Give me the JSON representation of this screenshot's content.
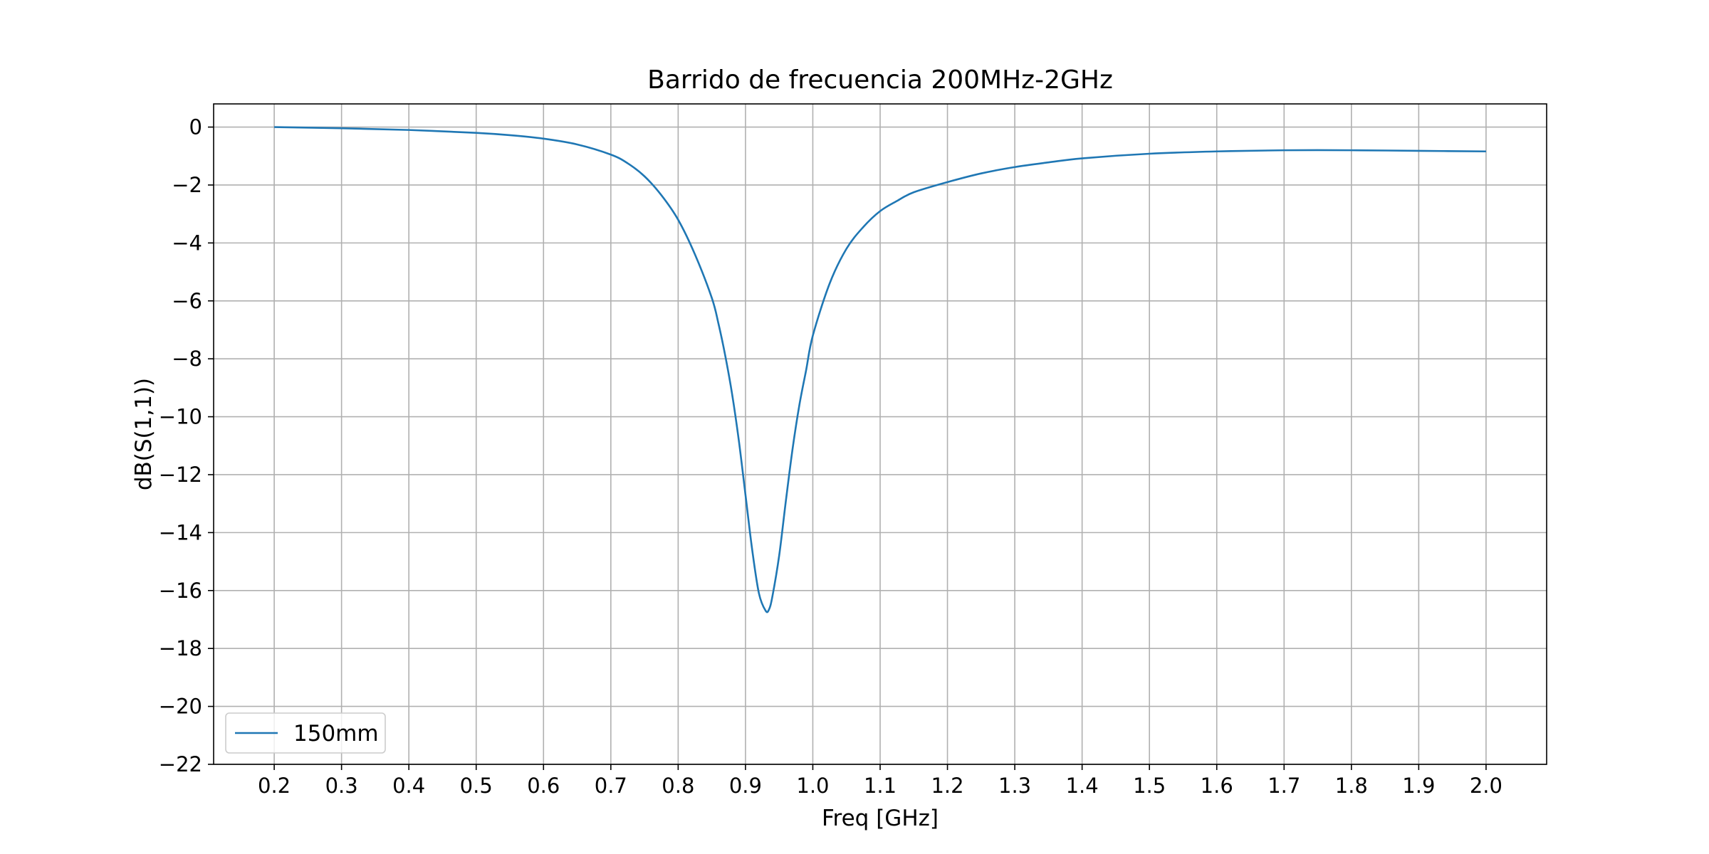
{
  "chart_data": {
    "type": "line",
    "title": "Barrido de frecuencia 200MHz-2GHz",
    "xlabel": "Freq [GHz]",
    "ylabel": "dB(S(1,1))",
    "xlim": [
      0.11,
      2.09
    ],
    "ylim": [
      -22,
      0.8
    ],
    "xticks": [
      0.2,
      0.3,
      0.4,
      0.5,
      0.6,
      0.7,
      0.8,
      0.9,
      1.0,
      1.1,
      1.2,
      1.3,
      1.4,
      1.5,
      1.6,
      1.7,
      1.8,
      1.9,
      2.0
    ],
    "xtick_labels": [
      "0.2",
      "0.3",
      "0.4",
      "0.5",
      "0.6",
      "0.7",
      "0.8",
      "0.9",
      "1.0",
      "1.1",
      "1.2",
      "1.3",
      "1.4",
      "1.5",
      "1.6",
      "1.7",
      "1.8",
      "1.9",
      "2.0"
    ],
    "yticks": [
      0,
      -2,
      -4,
      -6,
      -8,
      -10,
      -12,
      -14,
      -16,
      -18,
      -20,
      -22
    ],
    "ytick_labels": [
      "0",
      "−2",
      "−4",
      "−6",
      "−8",
      "−10",
      "−12",
      "−14",
      "−16",
      "−18",
      "−20",
      "−22"
    ],
    "grid": true,
    "legend_position": "lower-left",
    "series": [
      {
        "name": "150mm",
        "color": "#1f77b4",
        "x": [
          0.2,
          0.3,
          0.4,
          0.5,
          0.55,
          0.6,
          0.65,
          0.7,
          0.725,
          0.75,
          0.775,
          0.8,
          0.825,
          0.85,
          0.86,
          0.87,
          0.88,
          0.89,
          0.9,
          0.91,
          0.92,
          0.93,
          0.935,
          0.94,
          0.95,
          0.96,
          0.97,
          0.98,
          0.99,
          1.0,
          1.025,
          1.05,
          1.075,
          1.1,
          1.125,
          1.15,
          1.2,
          1.25,
          1.3,
          1.35,
          1.4,
          1.5,
          1.6,
          1.7,
          1.8,
          1.9,
          2.0
        ],
        "y": [
          0.0,
          -0.04,
          -0.1,
          -0.2,
          -0.28,
          -0.4,
          -0.6,
          -0.95,
          -1.25,
          -1.7,
          -2.35,
          -3.2,
          -4.4,
          -5.9,
          -6.8,
          -7.9,
          -9.2,
          -10.8,
          -12.7,
          -14.6,
          -16.1,
          -16.7,
          -16.65,
          -16.2,
          -14.8,
          -12.9,
          -11.1,
          -9.6,
          -8.4,
          -7.2,
          -5.4,
          -4.2,
          -3.45,
          -2.9,
          -2.55,
          -2.25,
          -1.9,
          -1.6,
          -1.38,
          -1.22,
          -1.08,
          -0.92,
          -0.84,
          -0.8,
          -0.8,
          -0.82,
          -0.84
        ]
      }
    ]
  }
}
